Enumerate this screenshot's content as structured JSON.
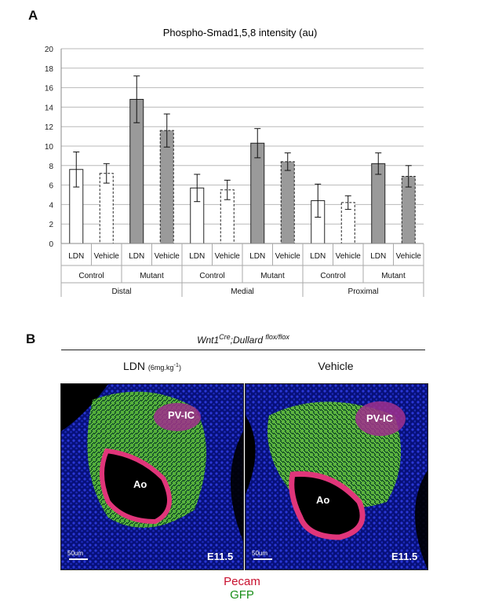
{
  "panels": {
    "a_letter": "A",
    "b_letter": "B"
  },
  "chart_data": {
    "type": "bar",
    "title": "Phospho-Smad1,5,8 intensity (au)",
    "ylim": [
      0,
      20
    ],
    "yticks": [
      "0",
      "2",
      "4",
      "6",
      "8",
      "10",
      "12",
      "14",
      "16",
      "18",
      "20"
    ],
    "grid": true,
    "bars": [
      {
        "treatment": "LDN",
        "genotype": "Control",
        "region": "Distal",
        "value": 7.6,
        "error": 1.8,
        "style": "white"
      },
      {
        "treatment": "Vehicle",
        "genotype": "Control",
        "region": "Distal",
        "value": 7.2,
        "error": 1.0,
        "style": "white-dashed"
      },
      {
        "treatment": "LDN",
        "genotype": "Mutant",
        "region": "Distal",
        "value": 14.8,
        "error": 2.4,
        "style": "grey"
      },
      {
        "treatment": "Vehicle",
        "genotype": "Mutant",
        "region": "Distal",
        "value": 11.6,
        "error": 1.7,
        "style": "grey-dashed"
      },
      {
        "treatment": "LDN",
        "genotype": "Control",
        "region": "Medial",
        "value": 5.7,
        "error": 1.4,
        "style": "white"
      },
      {
        "treatment": "Vehicle",
        "genotype": "Control",
        "region": "Medial",
        "value": 5.5,
        "error": 1.0,
        "style": "white-dashed"
      },
      {
        "treatment": "LDN",
        "genotype": "Mutant",
        "region": "Medial",
        "value": 10.3,
        "error": 1.5,
        "style": "grey"
      },
      {
        "treatment": "Vehicle",
        "genotype": "Mutant",
        "region": "Medial",
        "value": 8.4,
        "error": 0.9,
        "style": "grey-dashed"
      },
      {
        "treatment": "LDN",
        "genotype": "Control",
        "region": "Proximal",
        "value": 4.4,
        "error": 1.7,
        "style": "white"
      },
      {
        "treatment": "Vehicle",
        "genotype": "Control",
        "region": "Proximal",
        "value": 4.2,
        "error": 0.7,
        "style": "white-dashed"
      },
      {
        "treatment": "LDN",
        "genotype": "Mutant",
        "region": "Proximal",
        "value": 8.2,
        "error": 1.1,
        "style": "grey"
      },
      {
        "treatment": "Vehicle",
        "genotype": "Mutant",
        "region": "Proximal",
        "value": 6.9,
        "error": 1.1,
        "style": "grey-dashed"
      }
    ],
    "genotype_groups": [
      "Control",
      "Mutant",
      "Control",
      "Mutant",
      "Control",
      "Mutant"
    ],
    "regions": [
      "Distal",
      "Medial",
      "Proximal"
    ]
  },
  "panel_b": {
    "genotype_base1": "Wnt1",
    "genotype_sup1": "Cre",
    "genotype_base2": ";Dullard ",
    "genotype_sup2": "flox/flox",
    "left_title": "LDN",
    "left_dose": "(6mg.kg",
    "left_dose_sup": "-1",
    "left_dose_end": ")",
    "right_title": "Vehicle",
    "left_image": {
      "region_label": "PV-IC",
      "vessel_label": "Ao",
      "stage": "E11.5",
      "scale": "50um"
    },
    "right_image": {
      "region_label": "PV-IC",
      "vessel_label": "Ao",
      "stage": "E11.5",
      "scale": "50um"
    },
    "legend": {
      "line1": "Pecam",
      "line1_color": "#c8102e",
      "line2": "GFP",
      "line2_color": "#1a8f1a"
    }
  }
}
